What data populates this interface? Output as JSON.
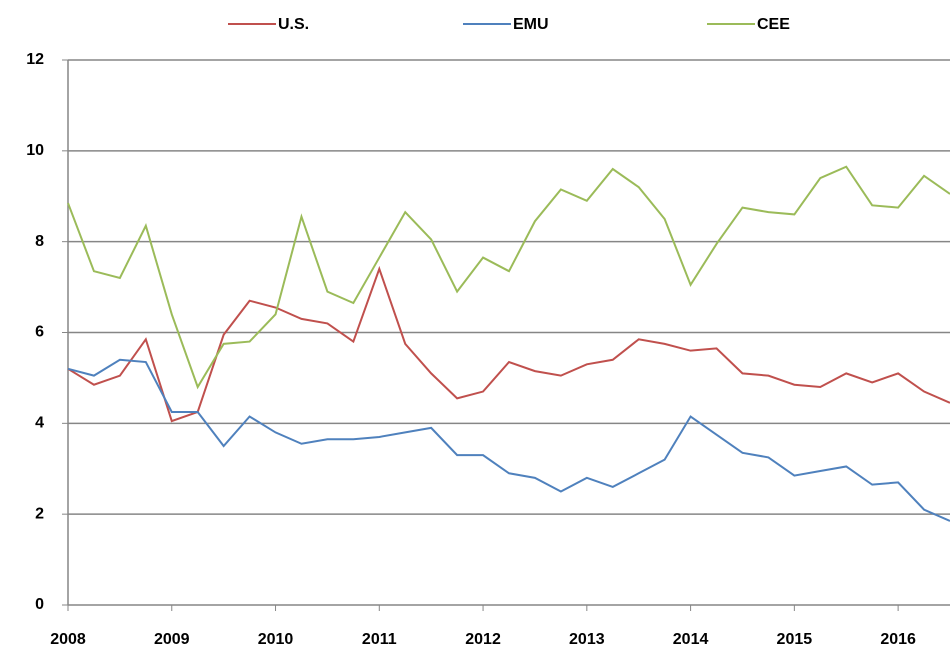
{
  "chart_data": {
    "type": "line",
    "x": [
      2008,
      2008.25,
      2008.5,
      2008.75,
      2009,
      2009.25,
      2009.5,
      2009.75,
      2010,
      2010.25,
      2010.5,
      2010.75,
      2011,
      2011.25,
      2011.5,
      2011.75,
      2012,
      2012.25,
      2012.5,
      2012.75,
      2013,
      2013.25,
      2013.5,
      2013.75,
      2014,
      2014.25,
      2014.5,
      2014.75,
      2015,
      2015.25,
      2015.5,
      2015.75,
      2016,
      2016.25,
      2016.5
    ],
    "series": [
      {
        "name": "U.S.",
        "color": "#c0504d",
        "values": [
          5.2,
          4.85,
          5.05,
          5.85,
          4.05,
          4.25,
          5.95,
          6.7,
          6.55,
          6.3,
          6.2,
          5.8,
          7.4,
          5.75,
          5.1,
          4.55,
          4.7,
          5.35,
          5.15,
          5.05,
          5.3,
          5.4,
          5.85,
          5.75,
          5.6,
          5.65,
          5.1,
          5.05,
          4.85,
          4.8,
          5.1,
          4.9,
          5.1,
          4.7,
          4.45
        ]
      },
      {
        "name": "EMU",
        "color": "#4f81bd",
        "values": [
          5.2,
          5.05,
          5.4,
          5.35,
          4.25,
          4.25,
          3.5,
          4.15,
          3.8,
          3.55,
          3.65,
          3.65,
          3.7,
          3.8,
          3.9,
          3.3,
          3.3,
          2.9,
          2.8,
          2.5,
          2.8,
          2.6,
          2.9,
          3.2,
          4.15,
          3.75,
          3.35,
          3.25,
          2.85,
          2.95,
          3.05,
          2.65,
          2.7,
          2.1,
          1.85
        ]
      },
      {
        "name": "CEE",
        "color": "#9bbb59",
        "values": [
          8.85,
          7.35,
          7.2,
          8.35,
          6.4,
          4.8,
          5.75,
          5.8,
          6.4,
          8.55,
          6.9,
          6.65,
          7.65,
          8.65,
          8.05,
          6.9,
          7.65,
          7.35,
          8.45,
          9.15,
          8.9,
          9.6,
          9.2,
          8.5,
          7.05,
          7.95,
          8.75,
          8.65,
          8.6,
          9.4,
          9.65,
          8.8,
          8.75,
          9.45,
          9.05
        ]
      }
    ],
    "xlim": [
      2008,
      2016.5
    ],
    "xticks": [
      2008,
      2009,
      2010,
      2011,
      2012,
      2013,
      2014,
      2015,
      2016
    ],
    "ylim": [
      0,
      12
    ],
    "yticks": [
      0,
      2,
      4,
      6,
      8,
      10,
      12
    ],
    "grid": true
  }
}
